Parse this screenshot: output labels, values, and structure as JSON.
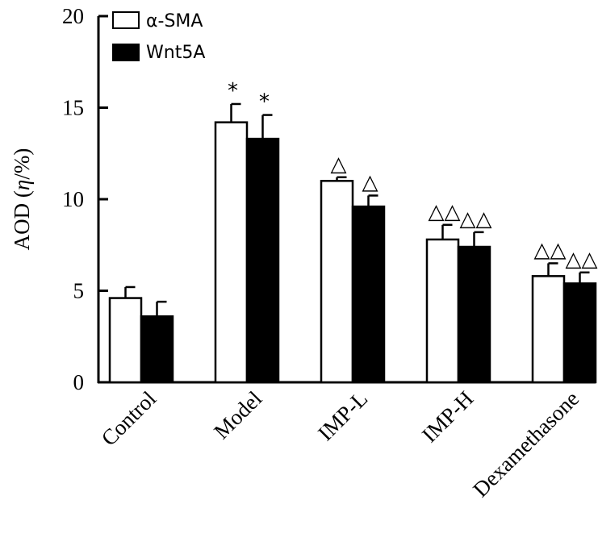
{
  "chart_data": {
    "type": "bar",
    "ylabel_prefix": "AOD (",
    "ylabel_symbol": "η",
    "ylabel_suffix": "/%)",
    "ylim": [
      0,
      20
    ],
    "yticks": [
      "0",
      "5",
      "10",
      "15",
      "20"
    ],
    "categories": [
      "Control",
      "Model",
      "IMP-L",
      "IMP-H",
      "Dexamethasone"
    ],
    "series": [
      {
        "name": "α-SMA",
        "color": "#ffffff",
        "values": [
          4.6,
          14.2,
          11.0,
          7.8,
          5.8
        ],
        "errors": [
          0.6,
          1.0,
          0.2,
          0.8,
          0.7
        ],
        "annotations": [
          "",
          "*",
          "△",
          "△△",
          "△△"
        ]
      },
      {
        "name": "Wnt5A",
        "color": "#000000",
        "values": [
          3.6,
          13.3,
          9.6,
          7.4,
          5.4
        ],
        "errors": [
          0.8,
          1.3,
          0.6,
          0.8,
          0.6
        ],
        "annotations": [
          "",
          "*",
          "△",
          "△△",
          "△△"
        ]
      }
    ],
    "legend": "top-left",
    "grid": false
  }
}
